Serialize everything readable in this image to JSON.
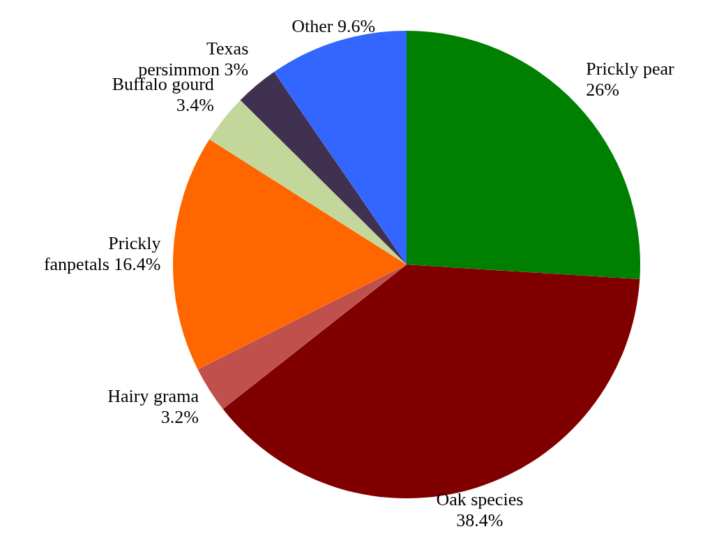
{
  "chart_data": {
    "type": "pie",
    "categories": [
      "Prickly pear",
      "Oak species",
      "Hairy grama",
      "Prickly fanpetals",
      "Buffalo gourd",
      "Texas persimmon",
      "Other"
    ],
    "values": [
      26,
      38.4,
      3.2,
      16.4,
      3.4,
      3,
      9.6
    ],
    "value_labels": [
      "26%",
      "38.4%",
      "3.2%",
      "16.4%",
      "3.4%",
      "3%",
      "9.6%"
    ],
    "colors": [
      "#008000",
      "#800000",
      "#c0504d",
      "#ff6600",
      "#c4d79b",
      "#403151",
      "#3366ff"
    ],
    "legend": false
  }
}
